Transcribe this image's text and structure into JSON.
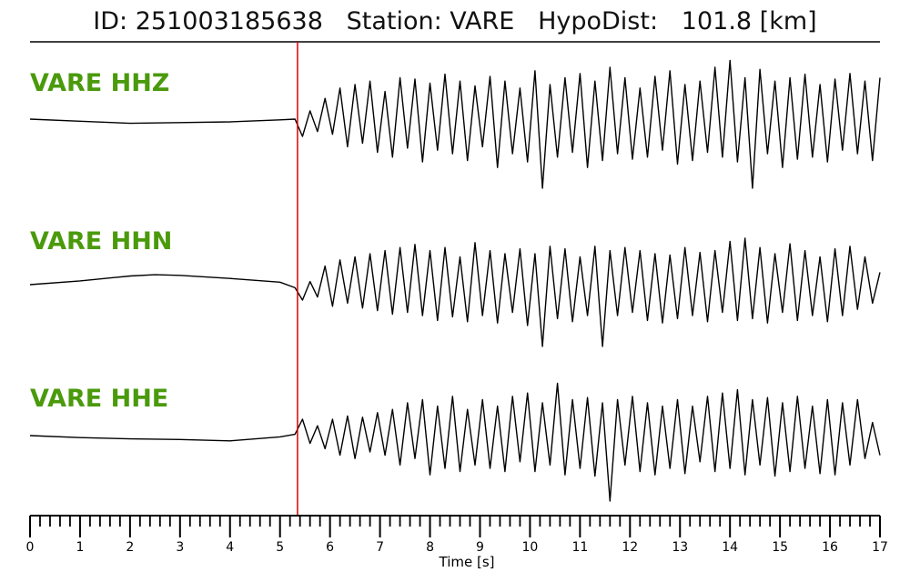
{
  "header": {
    "title": "ID: 251003185638   Station: VARE   HypoDist:   101.8 [km]"
  },
  "chart_data": {
    "type": "line",
    "xlabel": "Time [s]",
    "xlim": [
      0,
      17
    ],
    "x_ticks": [
      "0",
      "1",
      "2",
      "3",
      "4",
      "5",
      "6",
      "7",
      "8",
      "9",
      "10",
      "11",
      "12",
      "13",
      "14",
      "15",
      "16",
      "17"
    ],
    "minor_tick_step": 0.2,
    "pick_time": 5.35,
    "colors": {
      "trace": "#000000",
      "label": "#4a9a0c",
      "pick": "#e00000"
    },
    "series": [
      {
        "name": "VARE HHZ",
        "x": [
          0,
          1,
          2,
          3,
          4,
          5,
          5.3,
          5.45,
          5.6,
          5.75,
          5.9,
          6.05,
          6.2,
          6.35,
          6.5,
          6.65,
          6.8,
          6.95,
          7.1,
          7.25,
          7.4,
          7.55,
          7.7,
          7.85,
          8.0,
          8.15,
          8.3,
          8.45,
          8.6,
          8.75,
          8.9,
          9.05,
          9.2,
          9.35,
          9.5,
          9.65,
          9.8,
          9.95,
          10.1,
          10.25,
          10.4,
          10.55,
          10.7,
          10.85,
          11.0,
          11.15,
          11.3,
          11.45,
          11.6,
          11.75,
          11.9,
          12.05,
          12.2,
          12.35,
          12.5,
          12.65,
          12.8,
          12.95,
          13.1,
          13.25,
          13.4,
          13.55,
          13.7,
          13.85,
          14.0,
          14.15,
          14.3,
          14.45,
          14.6,
          14.75,
          14.9,
          15.05,
          15.2,
          15.35,
          15.5,
          15.65,
          15.8,
          15.95,
          16.1,
          16.25,
          16.4,
          16.55,
          16.7,
          16.85,
          17.0
        ],
        "values": [
          0.0,
          -0.03,
          -0.06,
          -0.05,
          -0.04,
          -0.01,
          0.0,
          -0.25,
          0.12,
          -0.18,
          0.3,
          -0.22,
          0.45,
          -0.4,
          0.5,
          -0.35,
          0.55,
          -0.48,
          0.4,
          -0.55,
          0.6,
          -0.42,
          0.58,
          -0.62,
          0.52,
          -0.45,
          0.65,
          -0.5,
          0.55,
          -0.6,
          0.48,
          -0.4,
          0.62,
          -0.7,
          0.55,
          -0.5,
          0.45,
          -0.62,
          0.7,
          -1.0,
          0.5,
          -0.55,
          0.6,
          -0.48,
          0.66,
          -0.7,
          0.55,
          -0.6,
          0.75,
          -0.5,
          0.6,
          -0.58,
          0.45,
          -0.55,
          0.62,
          -0.45,
          0.7,
          -0.65,
          0.5,
          -0.6,
          0.55,
          -0.48,
          0.75,
          -0.55,
          0.85,
          -0.62,
          0.6,
          -1.0,
          0.72,
          -0.5,
          0.55,
          -0.7,
          0.6,
          -0.58,
          0.65,
          -0.55,
          0.5,
          -0.62,
          0.58,
          -0.45,
          0.66,
          -0.5,
          0.55,
          -0.6,
          0.6
        ]
      },
      {
        "name": "VARE HHN",
        "x": [
          0,
          1,
          2,
          2.5,
          3,
          4,
          5,
          5.3,
          5.45,
          5.6,
          5.75,
          5.9,
          6.05,
          6.2,
          6.35,
          6.5,
          6.65,
          6.8,
          6.95,
          7.1,
          7.25,
          7.4,
          7.55,
          7.7,
          7.85,
          8.0,
          8.15,
          8.3,
          8.45,
          8.6,
          8.75,
          8.9,
          9.05,
          9.2,
          9.35,
          9.5,
          9.65,
          9.8,
          9.95,
          10.1,
          10.25,
          10.4,
          10.55,
          10.7,
          10.85,
          11.0,
          11.15,
          11.3,
          11.45,
          11.6,
          11.75,
          11.9,
          12.05,
          12.2,
          12.35,
          12.5,
          12.65,
          12.8,
          12.95,
          13.1,
          13.25,
          13.4,
          13.55,
          13.7,
          13.85,
          14.0,
          14.15,
          14.3,
          14.45,
          14.6,
          14.75,
          14.9,
          15.05,
          15.2,
          15.35,
          15.5,
          15.65,
          15.8,
          15.95,
          16.1,
          16.25,
          16.4,
          16.55,
          16.7,
          16.85,
          17.0
        ],
        "values": [
          0.0,
          0.06,
          0.14,
          0.16,
          0.15,
          0.1,
          0.04,
          -0.05,
          -0.25,
          0.05,
          -0.2,
          0.3,
          -0.35,
          0.4,
          -0.3,
          0.45,
          -0.38,
          0.5,
          -0.42,
          0.55,
          -0.48,
          0.6,
          -0.45,
          0.65,
          -0.5,
          0.55,
          -0.58,
          0.6,
          -0.52,
          0.45,
          -0.6,
          0.68,
          -0.5,
          0.55,
          -0.62,
          0.5,
          -0.45,
          0.58,
          -0.66,
          0.5,
          -1.0,
          0.62,
          -0.55,
          0.58,
          -0.6,
          0.45,
          -0.5,
          0.62,
          -1.0,
          0.55,
          -0.5,
          0.6,
          -0.45,
          0.55,
          -0.58,
          0.5,
          -0.62,
          0.48,
          -0.55,
          0.6,
          -0.5,
          0.52,
          -0.6,
          0.55,
          -0.45,
          0.7,
          -0.58,
          0.75,
          -0.55,
          0.6,
          -0.62,
          0.5,
          -0.45,
          0.66,
          -0.58,
          0.55,
          -0.5,
          0.45,
          -0.6,
          0.58,
          -0.5,
          0.62,
          -0.4,
          0.45,
          -0.3,
          0.2
        ]
      },
      {
        "name": "VARE HHE",
        "x": [
          0,
          1,
          2,
          3,
          4,
          5,
          5.3,
          5.45,
          5.6,
          5.75,
          5.9,
          6.05,
          6.2,
          6.35,
          6.5,
          6.65,
          6.8,
          6.95,
          7.1,
          7.25,
          7.4,
          7.55,
          7.7,
          7.85,
          8.0,
          8.15,
          8.3,
          8.45,
          8.6,
          8.75,
          8.9,
          9.05,
          9.2,
          9.35,
          9.5,
          9.65,
          9.8,
          9.95,
          10.1,
          10.25,
          10.4,
          10.55,
          10.7,
          10.85,
          11.0,
          11.15,
          11.3,
          11.45,
          11.6,
          11.75,
          11.9,
          12.05,
          12.2,
          12.35,
          12.5,
          12.65,
          12.8,
          12.95,
          13.1,
          13.25,
          13.4,
          13.55,
          13.7,
          13.85,
          14.0,
          14.15,
          14.3,
          14.45,
          14.6,
          14.75,
          14.9,
          15.05,
          15.2,
          15.35,
          15.5,
          15.65,
          15.8,
          15.95,
          16.1,
          16.25,
          16.4,
          16.55,
          16.7,
          16.85,
          17.0
        ],
        "values": [
          0.0,
          -0.03,
          -0.05,
          -0.06,
          -0.08,
          -0.02,
          0.02,
          0.25,
          -0.12,
          0.15,
          -0.2,
          0.25,
          -0.3,
          0.3,
          -0.35,
          0.28,
          -0.25,
          0.35,
          -0.3,
          0.4,
          -0.45,
          0.5,
          -0.35,
          0.55,
          -0.6,
          0.45,
          -0.5,
          0.6,
          -0.55,
          0.4,
          -0.45,
          0.55,
          -0.5,
          0.45,
          -0.55,
          0.6,
          -0.4,
          0.65,
          -0.55,
          0.5,
          -0.45,
          0.8,
          -0.6,
          0.55,
          -0.5,
          0.58,
          -0.62,
          0.5,
          -1.0,
          0.55,
          -0.45,
          0.6,
          -0.55,
          0.5,
          -0.6,
          0.45,
          -0.5,
          0.55,
          -0.58,
          0.45,
          -0.4,
          0.6,
          -0.55,
          0.65,
          -0.5,
          0.7,
          -0.6,
          0.55,
          -0.45,
          0.58,
          -0.62,
          0.5,
          -0.55,
          0.6,
          -0.5,
          0.45,
          -0.58,
          0.55,
          -0.6,
          0.5,
          -0.45,
          0.55,
          -0.35,
          0.2,
          -0.3
        ]
      }
    ]
  }
}
